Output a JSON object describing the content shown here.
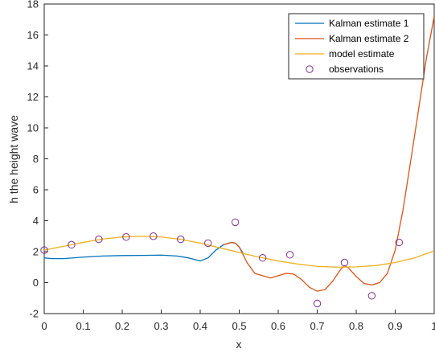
{
  "chart_data": {
    "type": "line",
    "xlabel": "x",
    "ylabel": "h the height wave",
    "xlim": [
      0,
      1
    ],
    "ylim": [
      -2,
      18
    ],
    "x_ticks": [
      0,
      0.1,
      0.2,
      0.3,
      0.4,
      0.5,
      0.6,
      0.7,
      0.8,
      0.9,
      1
    ],
    "x_tick_labels": [
      "0",
      "0.1",
      "0.2",
      "0.3",
      "0.4",
      "0.5",
      "0.6",
      "0.7",
      "0.8",
      "0.9",
      "1"
    ],
    "y_ticks": [
      -2,
      0,
      2,
      4,
      6,
      8,
      10,
      12,
      14,
      16,
      18
    ],
    "y_tick_labels": [
      "-2",
      "0",
      "2",
      "4",
      "6",
      "8",
      "10",
      "12",
      "14",
      "16",
      "18"
    ],
    "grid": false,
    "legend_position": "top-right",
    "series": [
      {
        "name": "Kalman estimate 1",
        "type": "line",
        "color": "#0072BD",
        "x": [
          0,
          0.02,
          0.05,
          0.1,
          0.15,
          0.2,
          0.25,
          0.3,
          0.34,
          0.37,
          0.4,
          0.42,
          0.44,
          0.46,
          0.48,
          0.49,
          0.5,
          0.51
        ],
        "y": [
          1.6,
          1.55,
          1.55,
          1.65,
          1.72,
          1.75,
          1.76,
          1.78,
          1.72,
          1.6,
          1.4,
          1.6,
          2.1,
          2.45,
          2.6,
          2.55,
          2.3,
          1.9
        ]
      },
      {
        "name": "Kalman estimate 2",
        "type": "line",
        "color": "#D95319",
        "x": [
          0.46,
          0.48,
          0.49,
          0.5,
          0.52,
          0.54,
          0.56,
          0.58,
          0.6,
          0.62,
          0.64,
          0.66,
          0.68,
          0.7,
          0.72,
          0.74,
          0.76,
          0.77,
          0.78,
          0.8,
          0.82,
          0.84,
          0.86,
          0.88,
          0.9,
          0.92,
          0.94,
          0.96,
          0.98,
          1.0
        ],
        "y": [
          2.45,
          2.6,
          2.55,
          2.3,
          1.3,
          0.6,
          0.45,
          0.3,
          0.45,
          0.6,
          0.55,
          0.2,
          -0.3,
          -0.55,
          -0.45,
          0.1,
          0.85,
          1.1,
          0.95,
          0.4,
          -0.05,
          -0.15,
          0.0,
          0.6,
          2.1,
          4.7,
          7.9,
          11.2,
          14.5,
          17.2
        ]
      },
      {
        "name": "model estimate",
        "type": "line",
        "color": "#EDB120",
        "x": [
          0,
          0.05,
          0.1,
          0.15,
          0.2,
          0.25,
          0.3,
          0.35,
          0.4,
          0.45,
          0.5,
          0.55,
          0.6,
          0.65,
          0.7,
          0.75,
          0.8,
          0.85,
          0.9,
          0.95,
          1.0
        ],
        "y": [
          2.1,
          2.35,
          2.6,
          2.82,
          2.95,
          3.0,
          2.95,
          2.8,
          2.55,
          2.25,
          1.95,
          1.65,
          1.4,
          1.2,
          1.05,
          1.0,
          1.02,
          1.1,
          1.3,
          1.6,
          2.05
        ]
      },
      {
        "name": "observations",
        "type": "scatter",
        "marker": "circle",
        "color": "#7E2F8E",
        "x": [
          0,
          0.07,
          0.14,
          0.21,
          0.28,
          0.35,
          0.42,
          0.49,
          0.56,
          0.63,
          0.7,
          0.77,
          0.84,
          0.91
        ],
        "y": [
          2.1,
          2.45,
          2.8,
          2.95,
          3.0,
          2.8,
          2.55,
          3.9,
          1.6,
          1.8,
          -1.35,
          1.3,
          -0.85,
          2.6
        ]
      }
    ]
  }
}
